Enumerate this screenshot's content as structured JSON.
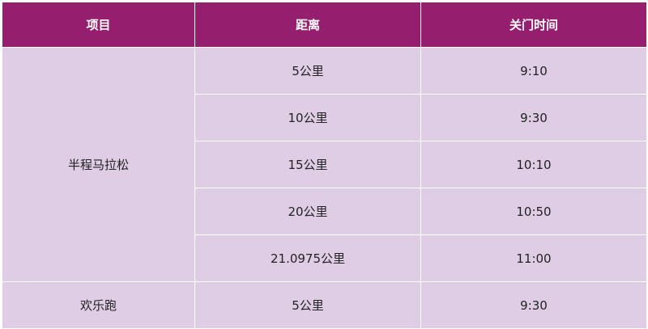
{
  "headers": [
    "项目",
    "距离",
    "关门时间"
  ],
  "groups": [
    {
      "name": "半程马拉松",
      "rows": [
        {
          "distance": "5公里",
          "time": "9:10"
        },
        {
          "distance": "10公里",
          "time": "9:30"
        },
        {
          "distance": "15公里",
          "time": "10:10"
        },
        {
          "distance": "20公里",
          "time": "10:50"
        },
        {
          "distance": "21.0975公里",
          "time": "11:00"
        }
      ]
    },
    {
      "name": "欢乐跑",
      "rows": [
        {
          "distance": "5公里",
          "time": "9:30"
        }
      ]
    }
  ],
  "colors": {
    "header": "#951f6e",
    "body": "#dfcce5"
  }
}
